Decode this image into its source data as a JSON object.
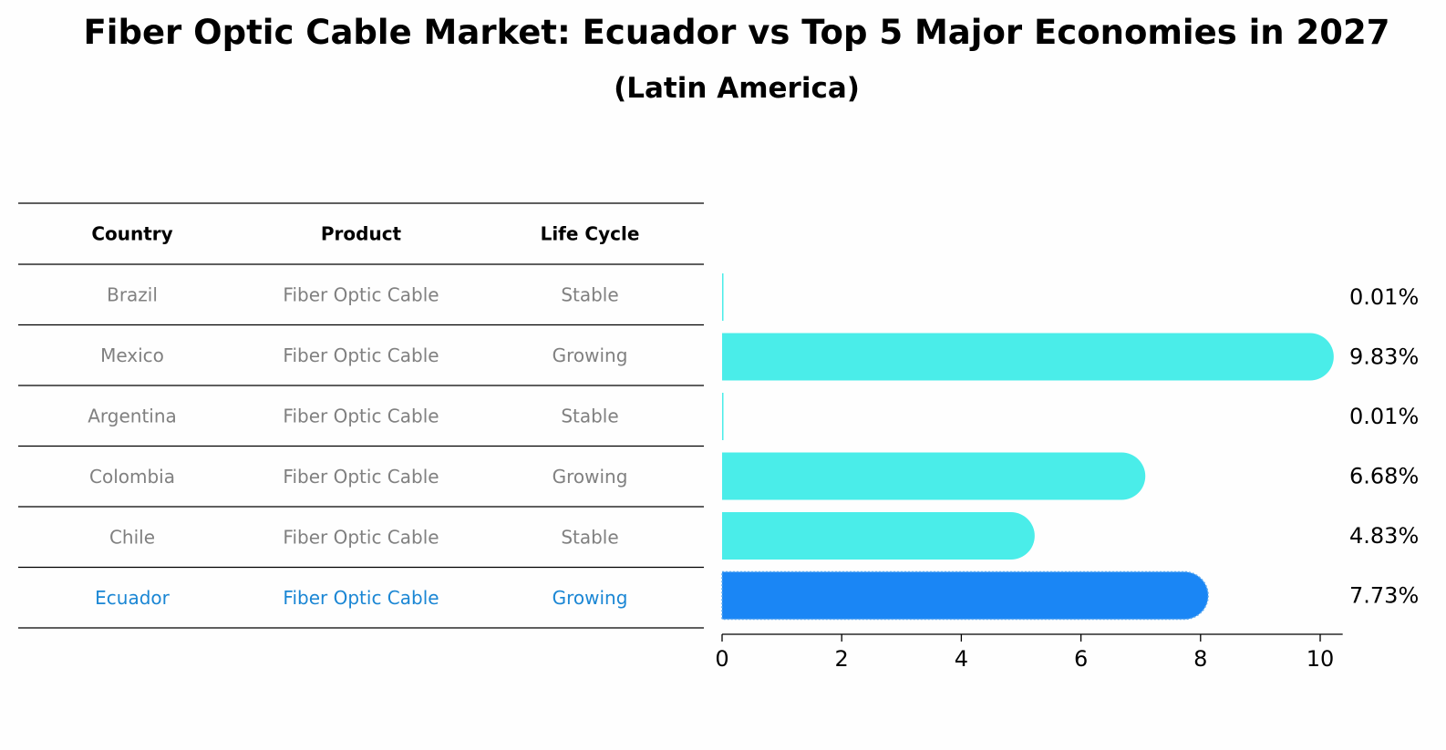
{
  "chart_data": {
    "type": "bar",
    "orientation": "horizontal",
    "title": "Fiber Optic Cable Market: Ecuador vs Top 5 Major Economies in 2027",
    "subtitle": "(Latin America)",
    "table": {
      "headers": [
        "Country",
        "Product",
        "Life Cycle"
      ],
      "rows": [
        [
          "Brazil",
          "Fiber Optic Cable",
          "Stable"
        ],
        [
          "Mexico",
          "Fiber Optic Cable",
          "Growing"
        ],
        [
          "Argentina",
          "Fiber Optic Cable",
          "Stable"
        ],
        [
          "Colombia",
          "Fiber Optic Cable",
          "Growing"
        ],
        [
          "Chile",
          "Fiber Optic Cable",
          "Stable"
        ],
        [
          "Ecuador",
          "Fiber Optic Cable",
          "Growing"
        ]
      ]
    },
    "categories": [
      "Brazil",
      "Mexico",
      "Argentina",
      "Colombia",
      "Chile",
      "Ecuador"
    ],
    "values": [
      0.01,
      9.83,
      0.01,
      6.68,
      4.83,
      7.73
    ],
    "value_labels": [
      "0.01%",
      "9.83%",
      "0.01%",
      "6.68%",
      "4.83%",
      "7.73%"
    ],
    "highlight": "Ecuador",
    "xlim": [
      0,
      10.3
    ],
    "xticks": [
      0,
      2,
      4,
      6,
      8,
      10
    ],
    "xtick_labels": [
      "0",
      "2",
      "4",
      "6",
      "8",
      "10"
    ],
    "xlabel": "",
    "ylabel": "",
    "grid": false,
    "colors": {
      "bar": "#4aede9",
      "highlight": "#1a86f5",
      "text_muted": "#808080",
      "text_highlight": "#1a86d4",
      "rule": "#000000"
    }
  }
}
